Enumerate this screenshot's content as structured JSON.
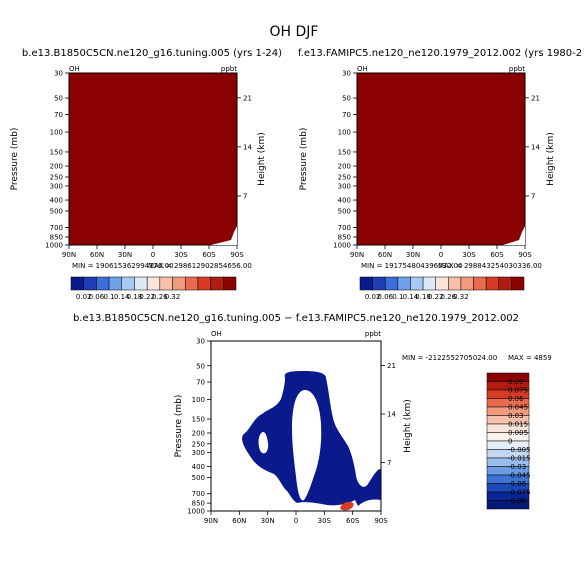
{
  "figure_title": "OH DJF",
  "chart_data": [
    {
      "type": "heatmap",
      "title": "b.e13.B1850C5CN.ne120_g16.tuning.005 (yrs 1-24)",
      "variable": "OH",
      "units": "ppbt",
      "xlabel": "",
      "ylabel": "Pressure (mb)",
      "ylabel_right": "Height (km)",
      "x_ticks": [
        "90N",
        "60N",
        "30N",
        "0",
        "30S",
        "60S",
        "90S"
      ],
      "y_ticks": [
        "30",
        "50",
        "70",
        "100",
        "150",
        "200",
        "250",
        "300",
        "400",
        "500",
        "700",
        "850",
        "1000"
      ],
      "y_ticks_right": [
        "21",
        "14",
        "7"
      ],
      "fill_color": "#8b0000",
      "min_label": "MIN = 190615362994176.00",
      "max_label": "MAX = 298612902854656.00",
      "colorbar": {
        "orientation": "horizontal",
        "levels": [
          "0.02",
          "0.06",
          "0.1",
          "0.14",
          "0.18",
          "0.22",
          "0.26",
          "0.32"
        ],
        "colors": [
          "#0a1a8c",
          "#1f3fb8",
          "#3c6fd8",
          "#6fa0e8",
          "#a9c9f2",
          "#dce9f9",
          "#f9e4dc",
          "#f6c1ac",
          "#f29a80",
          "#e86a4f",
          "#d63b27",
          "#b21c10",
          "#8b0000"
        ]
      }
    },
    {
      "type": "heatmap",
      "title": "f.e13.FAMIPC5.ne120_ne120.1979_2012.002 (yrs 1980-2",
      "variable": "OH",
      "units": "ppbt",
      "xlabel": "",
      "ylabel": "Pressure (mb)",
      "ylabel_right": "Height (km)",
      "x_ticks": [
        "90N",
        "60N",
        "30N",
        "0",
        "30S",
        "60S",
        "90S"
      ],
      "y_ticks": [
        "30",
        "50",
        "70",
        "100",
        "150",
        "200",
        "250",
        "300",
        "400",
        "500",
        "700",
        "850",
        "1000"
      ],
      "y_ticks_right": [
        "21",
        "14",
        "7"
      ],
      "fill_color": "#8b0000",
      "min_label": "MIN = 191754804396032.00",
      "max_label": "MAX = 298843254030336.00",
      "colorbar": {
        "orientation": "horizontal",
        "levels": [
          "0.02",
          "0.06",
          "0.1",
          "0.14",
          "0.18",
          "0.22",
          "0.26",
          "0.32"
        ],
        "colors": [
          "#0a1a8c",
          "#1f3fb8",
          "#3c6fd8",
          "#6fa0e8",
          "#a9c9f2",
          "#dce9f9",
          "#f9e4dc",
          "#f6c1ac",
          "#f29a80",
          "#e86a4f",
          "#d63b27",
          "#b21c10",
          "#8b0000"
        ]
      }
    },
    {
      "type": "heatmap",
      "title": "b.e13.B1850C5CN.ne120_g16.tuning.005 − f.e13.FAMIPC5.ne120_ne120.1979_2012.002",
      "variable": "OH",
      "units": "ppbt",
      "xlabel": "",
      "ylabel": "Pressure (mb)",
      "ylabel_right": "Height (km)",
      "x_ticks": [
        "90N",
        "60N",
        "30N",
        "0",
        "30S",
        "60S",
        "90S"
      ],
      "y_ticks": [
        "30",
        "50",
        "70",
        "100",
        "150",
        "200",
        "250",
        "300",
        "400",
        "500",
        "700",
        "850",
        "1000"
      ],
      "y_ticks_right": [
        "21",
        "14",
        "7"
      ],
      "background_color": "#ffffff",
      "anomaly_color": "#0a1a8c",
      "positive_color": "#d63b27",
      "min_label": "MIN = -2122552705024.00",
      "max_label": "MAX = 4859",
      "colorbar": {
        "orientation": "vertical",
        "levels": [
          "0.09",
          "0.075",
          "0.06",
          "0.045",
          "0.03",
          "0.015",
          "0.005",
          "0",
          "-0.005",
          "-0.015",
          "-0.03",
          "-0.045",
          "-0.06",
          "-0.075",
          "-0.09"
        ],
        "colors": [
          "#8b0000",
          "#b21c10",
          "#d63b27",
          "#e86a4f",
          "#f29a80",
          "#f6c1ac",
          "#f9e4dc",
          "#fbf3ee",
          "#e6eefb",
          "#c4d8f4",
          "#9bbdee",
          "#6b9be3",
          "#3e73d6",
          "#1d49b8",
          "#0a2596",
          "#061a78"
        ]
      }
    }
  ]
}
